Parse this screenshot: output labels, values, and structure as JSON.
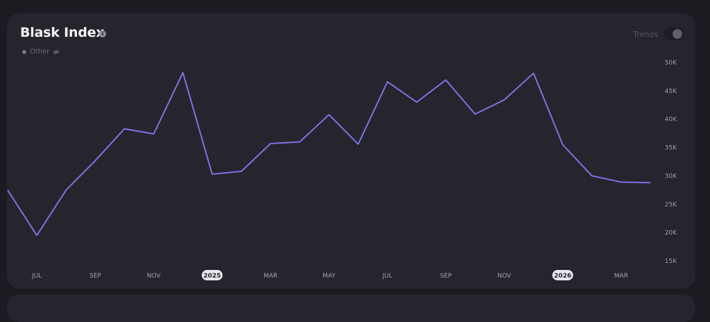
{
  "card": {
    "title": "Blask Index",
    "info_icon": "info-icon",
    "trends_label": "Trends",
    "trends_enabled": false
  },
  "legend": [
    {
      "label": "Other",
      "icon": "eye-off-icon",
      "hidden": true,
      "color": "#7a7983"
    }
  ],
  "colors": {
    "line": "#7d72e6",
    "background": "#1c1b21",
    "card": "#26252d"
  },
  "chart_data": {
    "type": "line",
    "title": "Blask Index",
    "x": [
      "2024-06",
      "2024-07",
      "2024-08",
      "2024-09",
      "2024-10",
      "2024-11",
      "2024-12",
      "2025-01",
      "2025-02",
      "2025-03",
      "2025-04",
      "2025-05",
      "2025-06",
      "2025-07",
      "2025-08",
      "2025-09",
      "2025-10",
      "2025-11",
      "2025-12",
      "2026-01",
      "2026-02",
      "2026-03",
      "2026-04"
    ],
    "series": [
      {
        "values": [
          27500,
          19500,
          27500,
          32700,
          38300,
          37400,
          48200,
          30300,
          30800,
          35700,
          36000,
          40800,
          35600,
          46600,
          43000,
          46900,
          40900,
          43400,
          48100,
          35500,
          30000,
          28900,
          28800
        ]
      }
    ],
    "x_tick_labels": [
      {
        "x": "2024-07",
        "label": "JUL",
        "year": false
      },
      {
        "x": "2024-09",
        "label": "SEP",
        "year": false
      },
      {
        "x": "2024-11",
        "label": "NOV",
        "year": false
      },
      {
        "x": "2025-01",
        "label": "2025",
        "year": true
      },
      {
        "x": "2025-03",
        "label": "MAR",
        "year": false
      },
      {
        "x": "2025-05",
        "label": "MAY",
        "year": false
      },
      {
        "x": "2025-07",
        "label": "JUL",
        "year": false
      },
      {
        "x": "2025-09",
        "label": "SEP",
        "year": false
      },
      {
        "x": "2025-11",
        "label": "NOV",
        "year": false
      },
      {
        "x": "2026-01",
        "label": "2026",
        "year": true
      },
      {
        "x": "2026-03",
        "label": "MAR",
        "year": false
      }
    ],
    "y_ticks": [
      50000,
      45000,
      40000,
      35000,
      30000,
      25000,
      20000,
      15000
    ],
    "y_tick_labels": [
      "50K",
      "45K",
      "40K",
      "35K",
      "30K",
      "25K",
      "20K",
      "15K"
    ],
    "ylim": [
      15000,
      50000
    ],
    "grid": false,
    "legend_position": "top-left"
  }
}
